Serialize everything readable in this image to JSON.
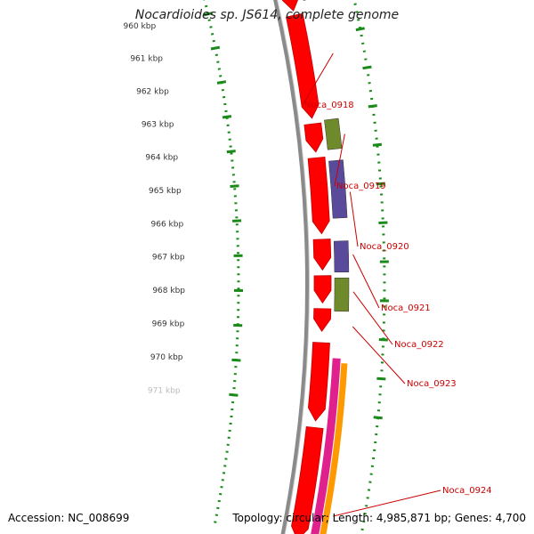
{
  "title": "Nocardioides sp. JS614, complete genome",
  "footer": {
    "accession": "Accession: NC_008699",
    "summary": "Topology: circular; Length: 4,985,871 bp; Genes: 4,700"
  },
  "scale": {
    "unit": "kbp",
    "ticks": [
      {
        "label": "960 kbp"
      },
      {
        "label": "961 kbp"
      },
      {
        "label": "962 kbp"
      },
      {
        "label": "963 kbp"
      },
      {
        "label": "964 kbp"
      },
      {
        "label": "965 kbp"
      },
      {
        "label": "966 kbp"
      },
      {
        "label": "967 kbp"
      },
      {
        "label": "968 kbp"
      },
      {
        "label": "969 kbp"
      },
      {
        "label": "970 kbp"
      },
      {
        "label": "971 kbp"
      }
    ]
  },
  "gene_labels": [
    {
      "label": "Noca_0918"
    },
    {
      "label": "Noca_0919"
    },
    {
      "label": "Noca_0920"
    },
    {
      "label": "Noca_0921"
    },
    {
      "label": "Noca_0922"
    },
    {
      "label": "Noca_0923"
    },
    {
      "label": "Noca_0924"
    }
  ],
  "colors": {
    "gene_red": "#ff0000",
    "gene_red_dark": "#c40000",
    "feature_purple": "#5a4a9c",
    "feature_green": "#6f8a2a",
    "feature_magenta": "#e0208c",
    "feature_orange": "#ff9900",
    "backbone": "#8a8a8a",
    "scale_green": "#1a8a1a",
    "label_red": "#cc0000"
  }
}
